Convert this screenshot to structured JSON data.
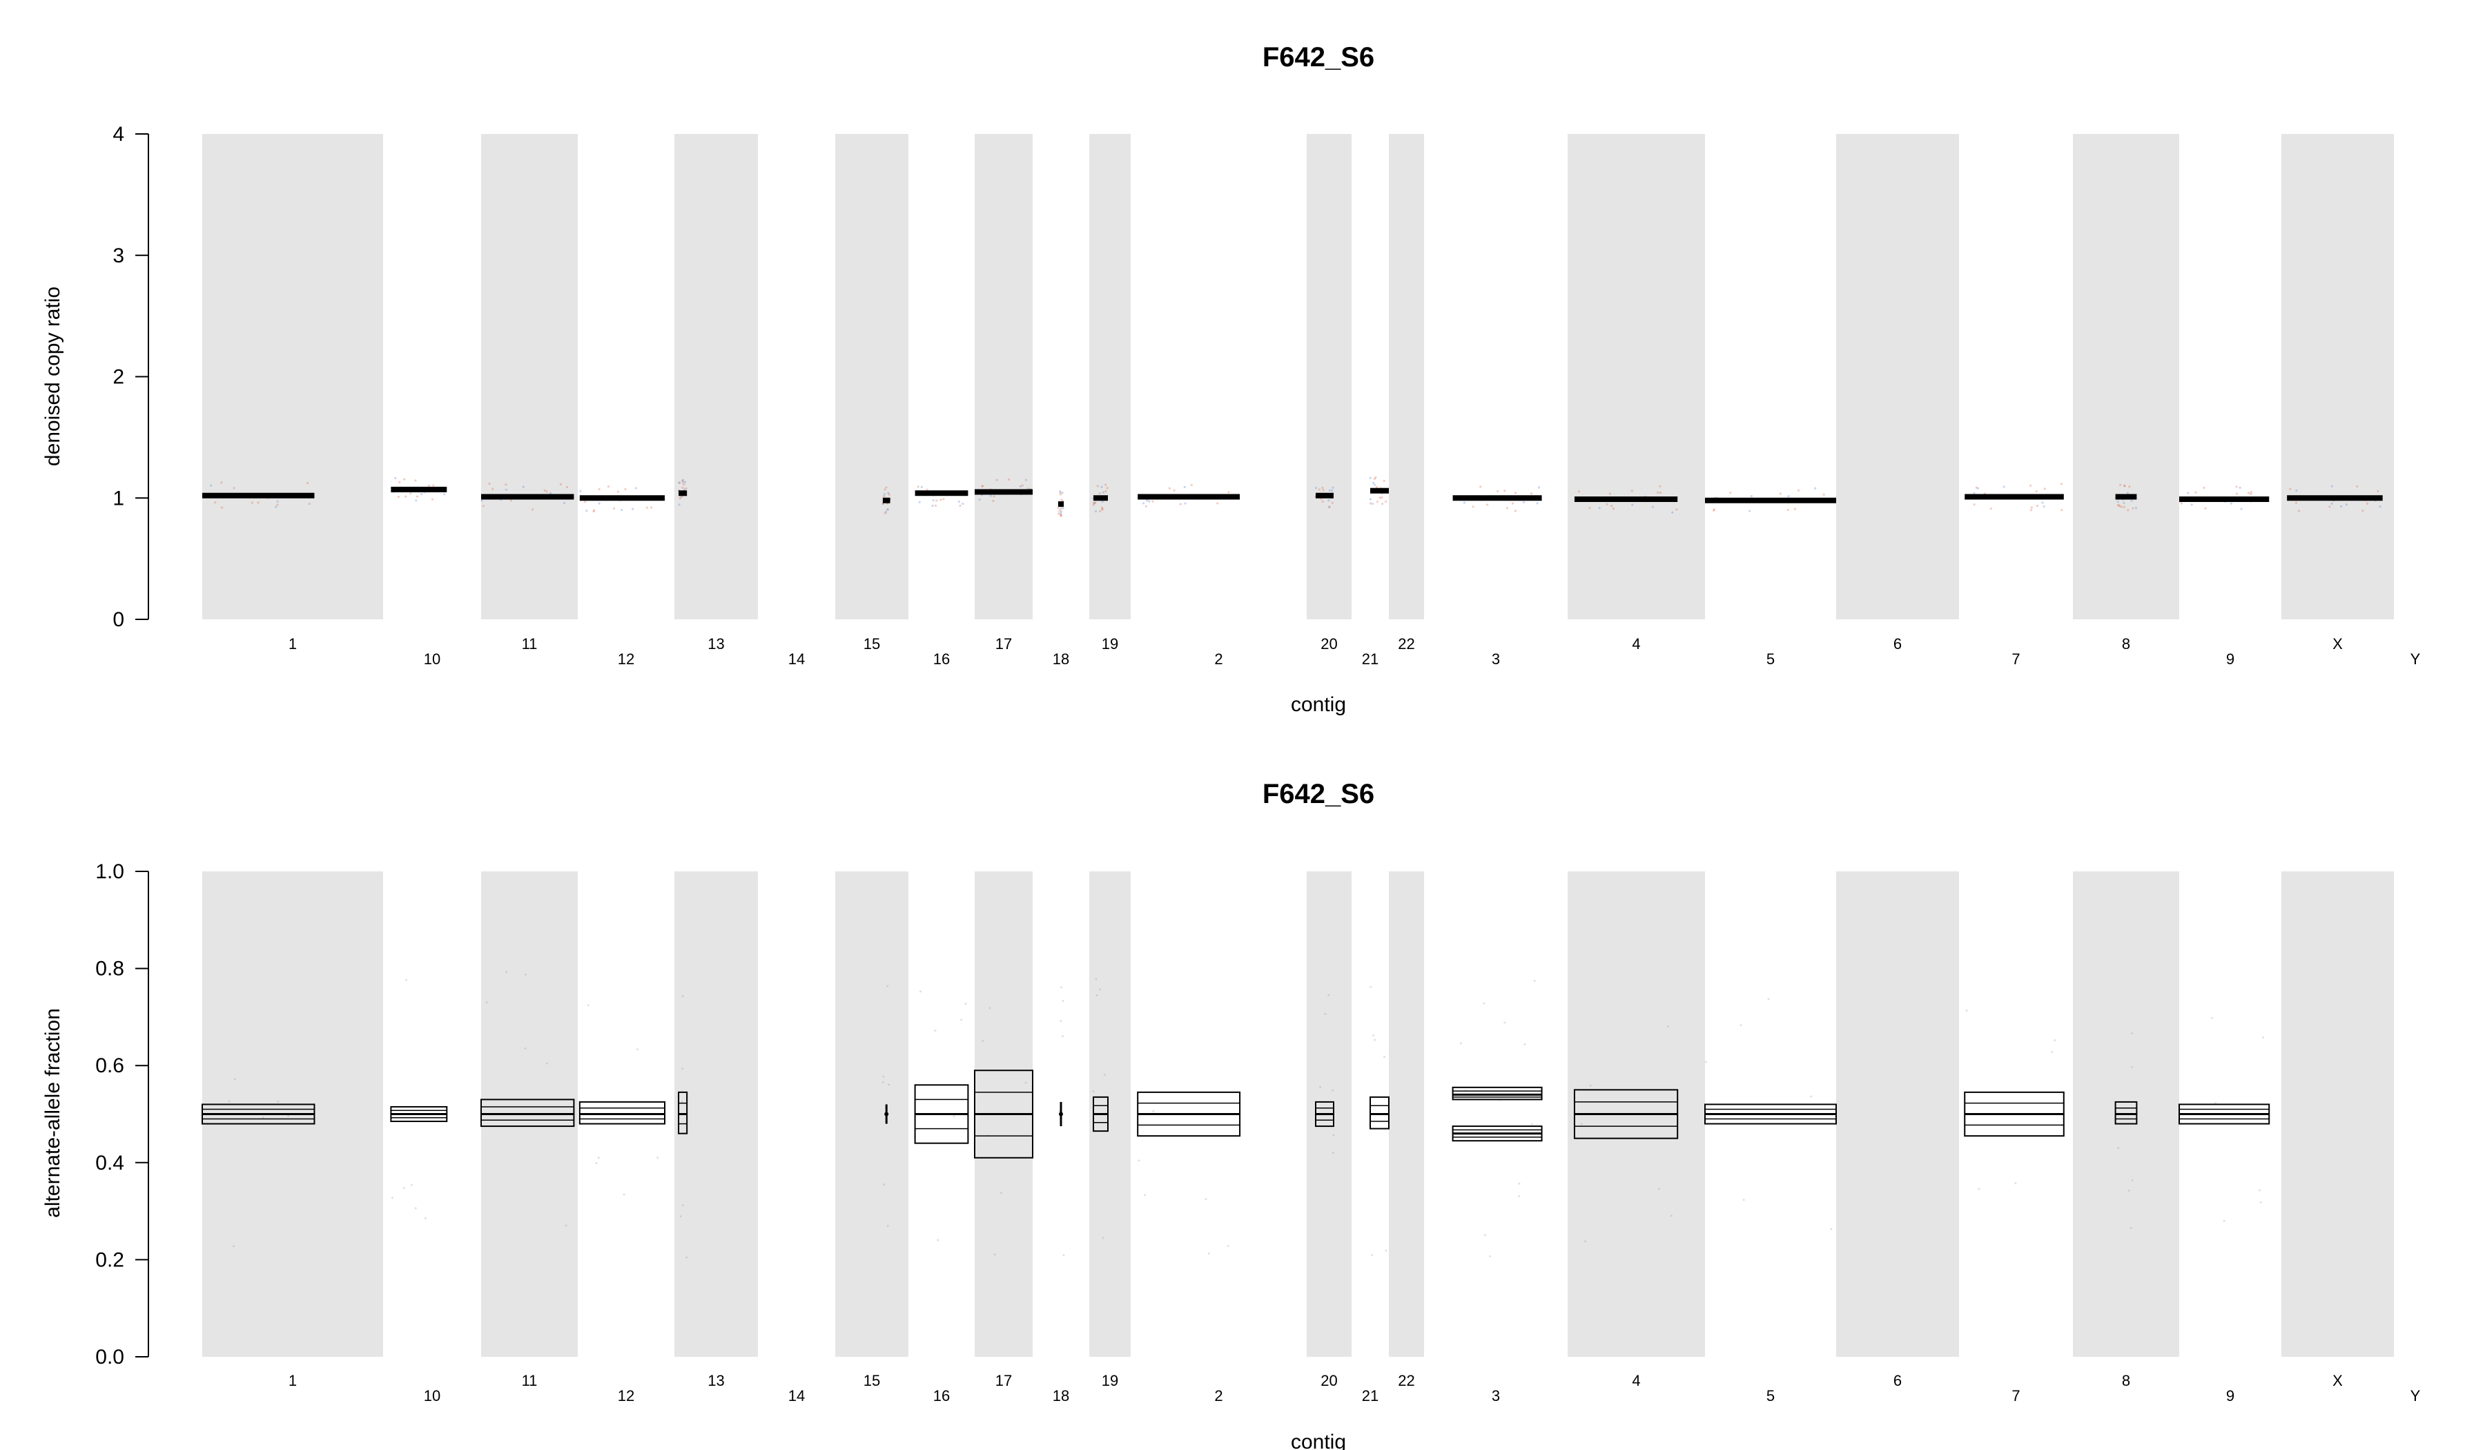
{
  "chart_data": [
    {
      "type": "scatter",
      "title": "F642_S6",
      "xlabel": "contig",
      "ylabel": "denoised copy ratio",
      "ylim": [
        0,
        4
      ],
      "yticks": [
        "0",
        "1",
        "2",
        "3",
        "4"
      ],
      "contigs": [
        {
          "name": "1",
          "shaded": true
        },
        {
          "name": "10",
          "shaded": false
        },
        {
          "name": "11",
          "shaded": true
        },
        {
          "name": "12",
          "shaded": false
        },
        {
          "name": "13",
          "shaded": true
        },
        {
          "name": "14",
          "shaded": false
        },
        {
          "name": "15",
          "shaded": true
        },
        {
          "name": "16",
          "shaded": false
        },
        {
          "name": "17",
          "shaded": true
        },
        {
          "name": "18",
          "shaded": false
        },
        {
          "name": "19",
          "shaded": true
        },
        {
          "name": "2",
          "shaded": false
        },
        {
          "name": "20",
          "shaded": true
        },
        {
          "name": "21",
          "shaded": false
        },
        {
          "name": "22",
          "shaded": true
        },
        {
          "name": "3",
          "shaded": false
        },
        {
          "name": "4",
          "shaded": true
        },
        {
          "name": "5",
          "shaded": false
        },
        {
          "name": "6",
          "shaded": true
        },
        {
          "name": "7",
          "shaded": false
        },
        {
          "name": "8",
          "shaded": true
        },
        {
          "name": "9",
          "shaded": false
        },
        {
          "name": "X",
          "shaded": true
        },
        {
          "name": "Y",
          "shaded": false
        }
      ],
      "segments": [
        {
          "contig": "1",
          "value": 1.02
        },
        {
          "contig": "10",
          "value": 1.07
        },
        {
          "contig": "11",
          "value": 1.01
        },
        {
          "contig": "12",
          "value": 1.0
        },
        {
          "contig": "13",
          "value": 1.04
        },
        {
          "contig": "15",
          "value": 0.98
        },
        {
          "contig": "16",
          "value": 1.04
        },
        {
          "contig": "17",
          "value": 1.05
        },
        {
          "contig": "18",
          "value": 0.95
        },
        {
          "contig": "19",
          "value": 1.0
        },
        {
          "contig": "2",
          "value": 1.01
        },
        {
          "contig": "20",
          "value": 1.02
        },
        {
          "contig": "21",
          "value": 1.06
        },
        {
          "contig": "3",
          "value": 1.0
        },
        {
          "contig": "4",
          "value": 0.99
        },
        {
          "contig": "5",
          "value": 0.98
        },
        {
          "contig": "7",
          "value": 1.01
        },
        {
          "contig": "8",
          "value": 1.01
        },
        {
          "contig": "9",
          "value": 0.99
        },
        {
          "contig": "X",
          "value": 1.0
        }
      ],
      "grid": false,
      "colors": {
        "shade": "#e5e5e5",
        "segment": "#000000",
        "point_red": "#e07050",
        "point_blue": "#5b8fd8"
      }
    },
    {
      "type": "scatter",
      "title": "F642_S6",
      "xlabel": "contig",
      "ylabel": "alternate-allele fraction",
      "ylim": [
        0,
        1
      ],
      "yticks": [
        "0.0",
        "0.2",
        "0.4",
        "0.6",
        "0.8",
        "1.0"
      ],
      "segments": [
        {
          "contig": "1",
          "lo": 0.48,
          "mid": 0.5,
          "hi": 0.52
        },
        {
          "contig": "10",
          "lo": 0.485,
          "mid": 0.5,
          "hi": 0.515
        },
        {
          "contig": "11",
          "lo": 0.475,
          "mid": 0.5,
          "hi": 0.53
        },
        {
          "contig": "12",
          "lo": 0.48,
          "mid": 0.5,
          "hi": 0.525
        },
        {
          "contig": "13",
          "lo": 0.46,
          "mid": 0.5,
          "hi": 0.545
        },
        {
          "contig": "15",
          "lo": 0.48,
          "mid": 0.5,
          "hi": 0.52
        },
        {
          "contig": "16",
          "lo": 0.44,
          "mid": 0.5,
          "hi": 0.56
        },
        {
          "contig": "17",
          "lo": 0.41,
          "mid": 0.5,
          "hi": 0.59
        },
        {
          "contig": "18",
          "lo": 0.475,
          "mid": 0.5,
          "hi": 0.525
        },
        {
          "contig": "19",
          "lo": 0.465,
          "mid": 0.5,
          "hi": 0.535
        },
        {
          "contig": "2",
          "lo": 0.455,
          "mid": 0.5,
          "hi": 0.545
        },
        {
          "contig": "20",
          "lo": 0.475,
          "mid": 0.5,
          "hi": 0.525
        },
        {
          "contig": "21",
          "lo": 0.47,
          "mid": 0.5,
          "hi": 0.535
        },
        {
          "contig": "3",
          "lo": 0.53,
          "mid": 0.54,
          "hi": 0.555
        },
        {
          "contig": "3",
          "lo": 0.445,
          "mid": 0.46,
          "hi": 0.475
        },
        {
          "contig": "4",
          "lo": 0.45,
          "mid": 0.5,
          "hi": 0.55
        },
        {
          "contig": "5",
          "lo": 0.48,
          "mid": 0.5,
          "hi": 0.52
        },
        {
          "contig": "7",
          "lo": 0.455,
          "mid": 0.5,
          "hi": 0.545
        },
        {
          "contig": "8",
          "lo": 0.48,
          "mid": 0.5,
          "hi": 0.525
        },
        {
          "contig": "9",
          "lo": 0.48,
          "mid": 0.5,
          "hi": 0.52
        }
      ],
      "grid": false,
      "colors": {
        "shade": "#e5e5e5",
        "segment": "#000000"
      }
    }
  ]
}
